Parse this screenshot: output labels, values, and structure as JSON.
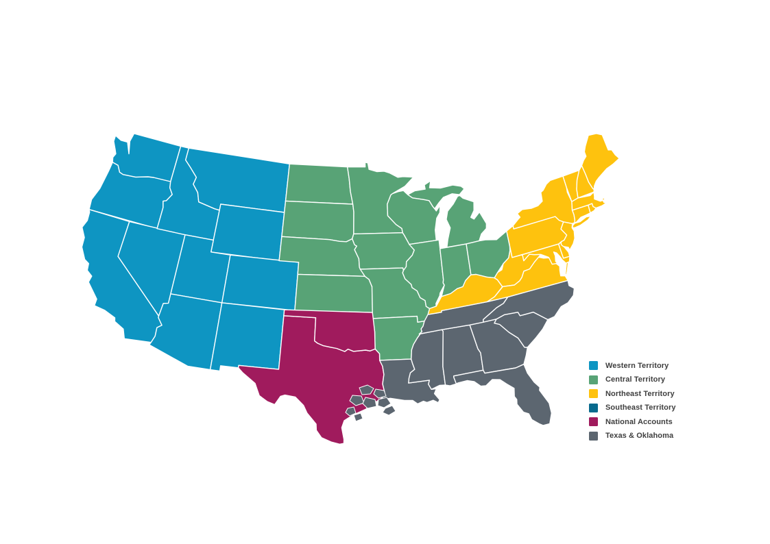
{
  "page": {
    "background": "#ffffff"
  },
  "legend": {
    "items": [
      {
        "label": "Western Territory",
        "color": "#0E95C2"
      },
      {
        "label": "Central Territory",
        "color": "#58A376"
      },
      {
        "label": "Northeast Territory",
        "color": "#FEC20E"
      },
      {
        "label": "Southeast Territory",
        "color": "#076A8D"
      },
      {
        "label": "National Accounts",
        "color": "#A01B5D"
      },
      {
        "label": "Texas & Oklahoma",
        "color": "#5C6670"
      }
    ]
  },
  "map": {
    "fills": {
      "blue": "#0E95C2",
      "green": "#58A376",
      "yellow": "#FEC20E",
      "magenta": "#A01B5D",
      "gray": "#5C6670"
    },
    "regions": {
      "blue": [
        "WA",
        "OR",
        "CA",
        "NV",
        "ID",
        "MT",
        "WY",
        "UT",
        "CO",
        "AZ",
        "NM"
      ],
      "green": [
        "ND",
        "SD",
        "NE",
        "KS",
        "MN",
        "IA",
        "MO",
        "AR",
        "WI",
        "MI",
        "MI_UP",
        "IL",
        "IN",
        "OH"
      ],
      "magenta": [
        "OK",
        "TX"
      ],
      "gray": [
        "TN",
        "MS",
        "AL",
        "GA",
        "FL",
        "SC",
        "NC",
        "LA"
      ],
      "yellow": [
        "KY",
        "WV",
        "VA",
        "VA_ES",
        "MD",
        "DE",
        "PA",
        "NJ",
        "NY",
        "NY_LI",
        "VT",
        "NH",
        "ME",
        "MA",
        "RI",
        "CT"
      ]
    },
    "coastal_blob_fill": "#5C6670"
  }
}
